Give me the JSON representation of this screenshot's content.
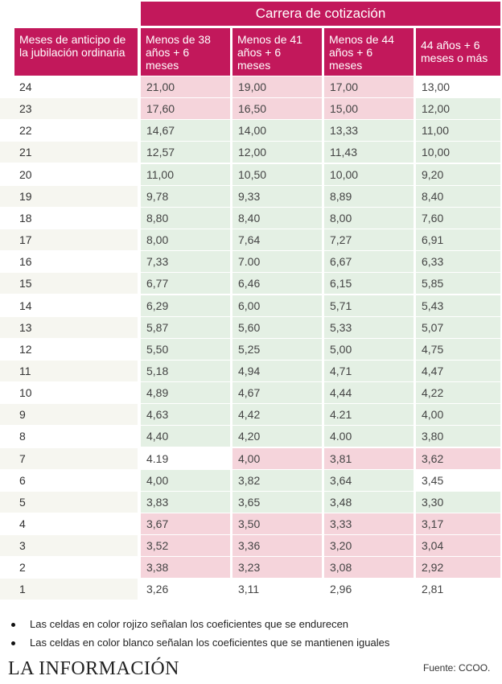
{
  "table": {
    "super_header": "Carrera de cotización",
    "row_header": "Meses de anticipo de la jubilación ordinaria",
    "columns": [
      "Menos de 38 años + 6 meses",
      "Menos de 41 años + 6 meses",
      "Menos de 44 años + 6 meses",
      "44 años + 6 meses o más"
    ],
    "rows": [
      {
        "label": "24",
        "values": [
          "21,00",
          "19,00",
          "17,00",
          "13,00"
        ],
        "status": [
          "red",
          "red",
          "red",
          "white"
        ]
      },
      {
        "label": "23",
        "values": [
          "17,60",
          "16,50",
          "15,00",
          "12,00"
        ],
        "status": [
          "red",
          "red",
          "red",
          "green"
        ]
      },
      {
        "label": "22",
        "values": [
          "14,67",
          "14,00",
          "13,33",
          "11,00"
        ],
        "status": [
          "green",
          "green",
          "green",
          "green"
        ]
      },
      {
        "label": "21",
        "values": [
          "12,57",
          "12,00",
          "11,43",
          "10,00"
        ],
        "status": [
          "green",
          "green",
          "green",
          "green"
        ]
      },
      {
        "label": "20",
        "values": [
          "11,00",
          "10,50",
          "10,00",
          "9,20"
        ],
        "status": [
          "green",
          "green",
          "green",
          "green"
        ]
      },
      {
        "label": "19",
        "values": [
          "9,78",
          "9,33",
          "8,89",
          "8,40"
        ],
        "status": [
          "green",
          "green",
          "green",
          "green"
        ]
      },
      {
        "label": "18",
        "values": [
          "8,80",
          "8,40",
          "8,00",
          "7,60"
        ],
        "status": [
          "green",
          "green",
          "green",
          "green"
        ]
      },
      {
        "label": "17",
        "values": [
          "8,00",
          "7,64",
          "7,27",
          "6,91"
        ],
        "status": [
          "green",
          "green",
          "green",
          "green"
        ]
      },
      {
        "label": "16",
        "values": [
          "7,33",
          "7.00",
          "6,67",
          "6,33"
        ],
        "status": [
          "green",
          "green",
          "green",
          "green"
        ]
      },
      {
        "label": "15",
        "values": [
          "6,77",
          "6,46",
          "6,15",
          "5,85"
        ],
        "status": [
          "green",
          "green",
          "green",
          "green"
        ]
      },
      {
        "label": "14",
        "values": [
          "6,29",
          "6,00",
          "5,71",
          "5,43"
        ],
        "status": [
          "green",
          "green",
          "green",
          "green"
        ]
      },
      {
        "label": "13",
        "values": [
          "5,87",
          "5,60",
          "5,33",
          "5,07"
        ],
        "status": [
          "green",
          "green",
          "green",
          "green"
        ]
      },
      {
        "label": "12",
        "values": [
          "5,50",
          "5,25",
          "5,00",
          "4,75"
        ],
        "status": [
          "green",
          "green",
          "green",
          "green"
        ]
      },
      {
        "label": "11",
        "values": [
          "5,18",
          "4,94",
          "4,71",
          "4,47"
        ],
        "status": [
          "green",
          "green",
          "green",
          "green"
        ]
      },
      {
        "label": "10",
        "values": [
          "4,89",
          "4,67",
          "4,44",
          "4,22"
        ],
        "status": [
          "green",
          "green",
          "green",
          "green"
        ]
      },
      {
        "label": "9",
        "values": [
          "4,63",
          "4,42",
          "4.21",
          "4,00"
        ],
        "status": [
          "green",
          "green",
          "green",
          "green"
        ]
      },
      {
        "label": "8",
        "values": [
          "4,40",
          "4,20",
          "4.00",
          "3,80"
        ],
        "status": [
          "green",
          "green",
          "green",
          "green"
        ]
      },
      {
        "label": "7",
        "values": [
          "4.19",
          "4,00",
          "3,81",
          "3,62"
        ],
        "status": [
          "white",
          "red",
          "red",
          "red"
        ]
      },
      {
        "label": "6",
        "values": [
          "4,00",
          "3,82",
          "3,64",
          "3,45"
        ],
        "status": [
          "green",
          "green",
          "green",
          "white"
        ]
      },
      {
        "label": "5",
        "values": [
          "3,83",
          "3,65",
          "3,48",
          "3,30"
        ],
        "status": [
          "green",
          "green",
          "green",
          "green"
        ]
      },
      {
        "label": "4",
        "values": [
          "3,67",
          "3,50",
          "3,33",
          "3,17"
        ],
        "status": [
          "red",
          "red",
          "red",
          "red"
        ]
      },
      {
        "label": "3",
        "values": [
          "3,52",
          "3,36",
          "3,20",
          "3,04"
        ],
        "status": [
          "red",
          "red",
          "red",
          "red"
        ]
      },
      {
        "label": "2",
        "values": [
          "3,38",
          "3,23",
          "3,08",
          "2,92"
        ],
        "status": [
          "red",
          "red",
          "red",
          "red"
        ]
      },
      {
        "label": "1",
        "values": [
          "3,26",
          "3,11",
          "2,96",
          "2,81"
        ],
        "status": [
          "white",
          "white",
          "white",
          "white"
        ]
      }
    ]
  },
  "legend": [
    "Las celdas en color rojizo señalan los coeficientes que se endurecen",
    "Las celdas en color blanco señalan los coeficientes que se mantienen iguales"
  ],
  "footer": {
    "logo_text": "LA INFORMACIÓN",
    "source": "Fuente: CCOO."
  },
  "colors": {
    "header": "#c2185b",
    "red_cell": "#f5d4db",
    "green_cell": "#e4f0e4"
  }
}
